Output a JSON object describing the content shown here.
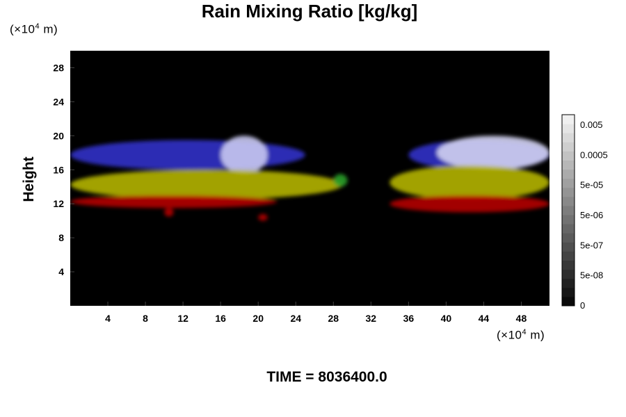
{
  "title": "Rain Mixing Ratio [kg/kg]",
  "timestamp": "TIME = 8036400.0",
  "y_unit": {
    "prefix": "(×10",
    "exp": "4",
    "suffix": " m)"
  },
  "x_unit": {
    "prefix": "(×10",
    "exp": "4",
    "suffix": " m)"
  },
  "chart_data": {
    "type": "heatmap",
    "title": "Rain Mixing Ratio [kg/kg]",
    "xlabel": "",
    "ylabel": "Height",
    "x_unit": "×10^4 m",
    "y_unit": "×10^4 m",
    "xlim": [
      0,
      51
    ],
    "ylim": [
      0,
      30
    ],
    "x_ticks": [
      "4",
      "8",
      "12",
      "16",
      "20",
      "24",
      "28",
      "32",
      "36",
      "40",
      "44",
      "48"
    ],
    "y_ticks": [
      "4",
      "8",
      "12",
      "16",
      "20",
      "24",
      "28"
    ],
    "background": "#000000",
    "colorbar": {
      "orientation": "vertical",
      "labels": [
        "0.005",
        "0.0005",
        "5e-05",
        "5e-06",
        "5e-07",
        "5e-08",
        "0"
      ],
      "levels": 21
    },
    "regions": [
      {
        "band": "upper",
        "color": "#3232c8",
        "x": [
          0,
          25
        ],
        "y": [
          16,
          19.5
        ]
      },
      {
        "band": "upper",
        "color": "#c8c8f0",
        "x": [
          16,
          21
        ],
        "y": [
          15.5,
          20
        ]
      },
      {
        "band": "upper",
        "color": "#3232c8",
        "x": [
          36,
          51
        ],
        "y": [
          16,
          19.5
        ]
      },
      {
        "band": "upper",
        "color": "#d2d2f0",
        "x": [
          39,
          51
        ],
        "y": [
          16,
          20
        ]
      },
      {
        "band": "middle",
        "color": "#b4b400",
        "x": [
          0,
          29
        ],
        "y": [
          12.5,
          16
        ]
      },
      {
        "band": "middle",
        "color": "#b4b400",
        "x": [
          34,
          51
        ],
        "y": [
          12.5,
          16.5
        ]
      },
      {
        "band": "middle",
        "color": "#28a028",
        "x": [
          28,
          29.5
        ],
        "y": [
          14,
          15.5
        ]
      },
      {
        "band": "lower",
        "color": "#b40000",
        "x": [
          0,
          22
        ],
        "y": [
          11.5,
          13
        ]
      },
      {
        "band": "lower",
        "color": "#b40000",
        "x": [
          34,
          51
        ],
        "y": [
          11,
          13
        ]
      },
      {
        "band": "lower",
        "color": "#b40000",
        "x": [
          10,
          11
        ],
        "y": [
          10.5,
          11.5
        ]
      },
      {
        "band": "lower",
        "color": "#b40000",
        "x": [
          20,
          21
        ],
        "y": [
          10,
          10.8
        ]
      }
    ]
  }
}
